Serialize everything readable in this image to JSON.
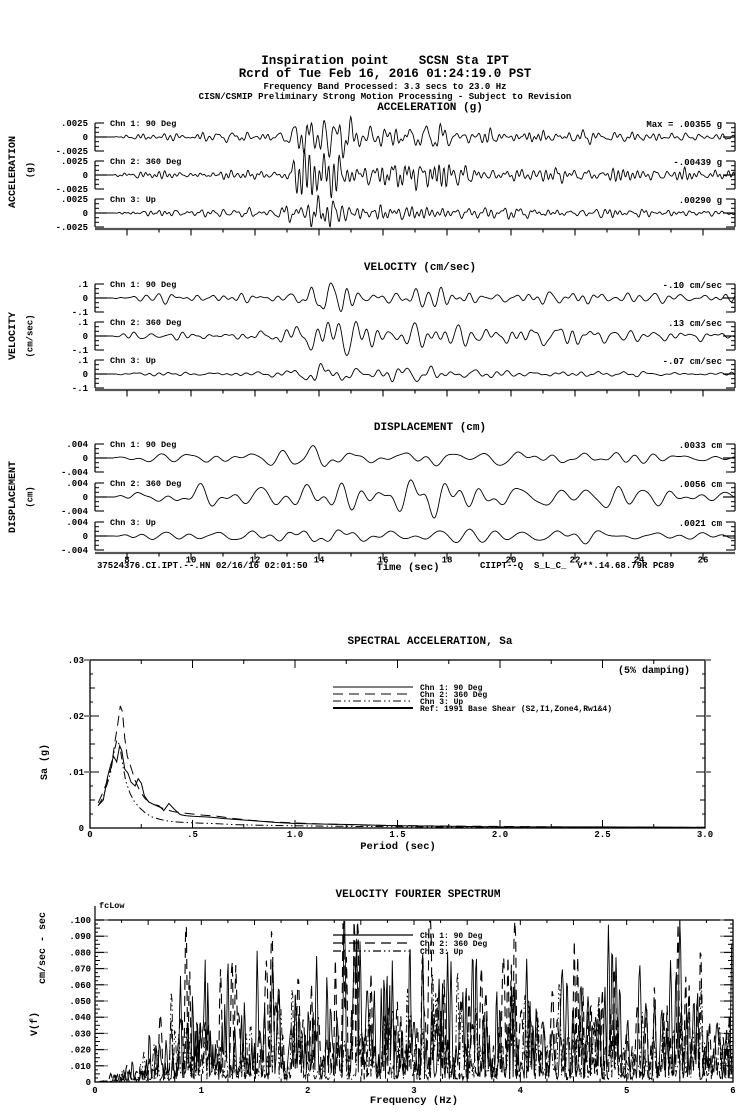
{
  "header": {
    "station_line": "Inspiration point    SCSN Sta IPT",
    "record_line": "Rcrd of Tue Feb 16, 2016 01:24:19.0 PST",
    "band_line": "Frequency Band Processed: 3.3 secs to 23.0 Hz",
    "notice_line": "CISN/CSMIP Preliminary Strong Motion Processing - Subject to Revision"
  },
  "footer": {
    "record_id": "37524376.CI.IPT.--.HN 02/16/16 02:01:50",
    "processing_id": "CIIPT--Q  S_L_C_  v**.14.68.79R PC89"
  },
  "colors": {
    "ink": "#000000",
    "axis_gray": "#555555",
    "accent_gray": "#888888"
  },
  "chart_data": [
    {
      "id": "acceleration",
      "type": "line",
      "title": "ACCELERATION (g)",
      "ylabel": "ACCELERATION",
      "ylabel_units": "(g)",
      "x_range_sec": [
        7,
        27
      ],
      "x_ticks_major": [
        8,
        10,
        12,
        14,
        16,
        18,
        20,
        22,
        24,
        26
      ],
      "y_tick_labels": [
        ".0025",
        "0",
        "-.0025"
      ],
      "y_full_scale": 0.0025,
      "channels": [
        {
          "label": "Chn 1: 90 Deg",
          "annotation": "Max =  .00355   g",
          "peak_value": 0.00355,
          "units": "g",
          "seed": 101
        },
        {
          "label": "Chn 2: 360 Deg",
          "annotation": "-.00439   g",
          "peak_value": -0.00439,
          "units": "g",
          "seed": 102
        },
        {
          "label": "Chn 3: Up",
          "annotation": ".00290   g",
          "peak_value": 0.0029,
          "units": "g",
          "seed": 103
        }
      ]
    },
    {
      "id": "velocity",
      "type": "line",
      "title": "VELOCITY (cm/sec)",
      "ylabel": "VELOCITY",
      "ylabel_units": "(cm/sec)",
      "x_range_sec": [
        7,
        27
      ],
      "x_ticks_major": [
        8,
        10,
        12,
        14,
        16,
        18,
        20,
        22,
        24,
        26
      ],
      "y_tick_labels": [
        ".1",
        "0",
        "-.1"
      ],
      "y_full_scale": 0.1,
      "channels": [
        {
          "label": "Chn 1: 90 Deg",
          "annotation": "-.10   cm/sec",
          "peak_value": -0.1,
          "units": "cm/sec",
          "seed": 201
        },
        {
          "label": "Chn 2: 360 Deg",
          "annotation": ".13   cm/sec",
          "peak_value": 0.13,
          "units": "cm/sec",
          "seed": 202
        },
        {
          "label": "Chn 3: Up",
          "annotation": "-.07   cm/sec",
          "peak_value": -0.07,
          "units": "cm/sec",
          "seed": 203
        }
      ]
    },
    {
      "id": "displacement",
      "type": "line",
      "title": "DISPLACEMENT (cm)",
      "ylabel": "DISPLACEMENT",
      "ylabel_units": "(cm)",
      "xlabel": "Time (sec)",
      "x_range_sec": [
        7,
        27
      ],
      "x_ticks_major": [
        8,
        10,
        12,
        14,
        16,
        18,
        20,
        22,
        24,
        26
      ],
      "x_tick_labels": [
        "8",
        "10",
        "12",
        "14",
        "16",
        "18",
        "20",
        "22",
        "24",
        "26"
      ],
      "y_tick_labels": [
        ".004",
        "0",
        "-.004"
      ],
      "y_full_scale": 0.004,
      "channels": [
        {
          "label": "Chn 1: 90 Deg",
          "annotation": ".0033   cm",
          "peak_value": 0.0033,
          "units": "cm",
          "seed": 301
        },
        {
          "label": "Chn 2: 360 Deg",
          "annotation": ".0056   cm",
          "peak_value": 0.0056,
          "units": "cm",
          "seed": 302
        },
        {
          "label": "Chn 3: Up",
          "annotation": ".0021   cm",
          "peak_value": 0.0021,
          "units": "cm",
          "seed": 303
        }
      ]
    },
    {
      "id": "spectral_acceleration",
      "type": "line",
      "title": "SPECTRAL ACCELERATION, Sa",
      "damping_label": "(5% damping)",
      "xlabel": "Period (sec)",
      "ylabel": "Sa (g)",
      "xlim": [
        0,
        3.0
      ],
      "ylim": [
        0,
        0.03
      ],
      "x_tick_labels": [
        "0",
        ".5",
        "1.0",
        "1.5",
        "2.0",
        "2.5",
        "3.0"
      ],
      "x_tick_values": [
        0,
        0.5,
        1.0,
        1.5,
        2.0,
        2.5,
        3.0
      ],
      "y_tick_labels": [
        "0",
        ".01",
        ".02",
        ".03"
      ],
      "y_tick_values": [
        0,
        0.01,
        0.02,
        0.03
      ],
      "series": [
        {
          "name": "Chn 1: 90 Deg",
          "style": "solid",
          "points": [
            [
              0.04,
              0.004
            ],
            [
              0.065,
              0.005
            ],
            [
              0.085,
              0.009
            ],
            [
              0.1,
              0.0112
            ],
            [
              0.115,
              0.0128
            ],
            [
              0.13,
              0.0118
            ],
            [
              0.145,
              0.0147
            ],
            [
              0.155,
              0.0138
            ],
            [
              0.17,
              0.0105
            ],
            [
              0.185,
              0.0098
            ],
            [
              0.2,
              0.0082
            ],
            [
              0.22,
              0.0075
            ],
            [
              0.235,
              0.0088
            ],
            [
              0.25,
              0.008
            ],
            [
              0.265,
              0.0058
            ],
            [
              0.285,
              0.0047
            ],
            [
              0.31,
              0.0042
            ],
            [
              0.335,
              0.004
            ],
            [
              0.36,
              0.0031
            ],
            [
              0.385,
              0.0044
            ],
            [
              0.41,
              0.0034
            ],
            [
              0.44,
              0.0024
            ],
            [
              0.47,
              0.0022
            ],
            [
              0.5,
              0.0021
            ],
            [
              0.55,
              0.002
            ],
            [
              0.6,
              0.0019
            ],
            [
              0.65,
              0.0017
            ],
            [
              0.72,
              0.0015
            ],
            [
              0.8,
              0.0013
            ],
            [
              0.9,
              0.001
            ],
            [
              1.0,
              0.0008
            ],
            [
              1.15,
              0.0007
            ],
            [
              1.3,
              0.0006
            ],
            [
              1.5,
              0.0004
            ],
            [
              1.75,
              0.0003
            ],
            [
              2.0,
              0.0002
            ],
            [
              2.5,
              0.0002
            ],
            [
              3.0,
              0.0001
            ]
          ]
        },
        {
          "name": "Chn 2: 360 Deg",
          "style": "long-dash",
          "points": [
            [
              0.04,
              0.0045
            ],
            [
              0.065,
              0.0065
            ],
            [
              0.085,
              0.0085
            ],
            [
              0.105,
              0.011
            ],
            [
              0.12,
              0.015
            ],
            [
              0.135,
              0.0185
            ],
            [
              0.148,
              0.0218
            ],
            [
              0.158,
              0.0208
            ],
            [
              0.17,
              0.016
            ],
            [
              0.182,
              0.0128
            ],
            [
              0.2,
              0.0108
            ],
            [
              0.22,
              0.0085
            ],
            [
              0.245,
              0.0065
            ],
            [
              0.27,
              0.0052
            ],
            [
              0.3,
              0.0044
            ],
            [
              0.335,
              0.0038
            ],
            [
              0.37,
              0.0033
            ],
            [
              0.41,
              0.0029
            ],
            [
              0.45,
              0.0027
            ],
            [
              0.5,
              0.0025
            ],
            [
              0.55,
              0.0023
            ],
            [
              0.62,
              0.0021
            ],
            [
              0.7,
              0.0017
            ],
            [
              0.78,
              0.0014
            ],
            [
              0.88,
              0.0011
            ],
            [
              1.0,
              0.0009
            ],
            [
              1.15,
              0.0007
            ],
            [
              1.35,
              0.0005
            ],
            [
              1.6,
              0.0004
            ],
            [
              1.9,
              0.0003
            ],
            [
              2.3,
              0.0002
            ],
            [
              2.7,
              0.0001
            ],
            [
              3.0,
              0.0001
            ]
          ]
        },
        {
          "name": "Chn 3: Up",
          "style": "dash-dot-dot",
          "points": [
            [
              0.04,
              0.004
            ],
            [
              0.065,
              0.0055
            ],
            [
              0.085,
              0.008
            ],
            [
              0.1,
              0.0098
            ],
            [
              0.115,
              0.0132
            ],
            [
              0.13,
              0.0156
            ],
            [
              0.145,
              0.0148
            ],
            [
              0.16,
              0.0112
            ],
            [
              0.175,
              0.0083
            ],
            [
              0.195,
              0.0062
            ],
            [
              0.215,
              0.0048
            ],
            [
              0.24,
              0.0037
            ],
            [
              0.27,
              0.0027
            ],
            [
              0.3,
              0.002
            ],
            [
              0.335,
              0.0016
            ],
            [
              0.37,
              0.0013
            ],
            [
              0.41,
              0.0011
            ],
            [
              0.46,
              0.001
            ],
            [
              0.52,
              0.0009
            ],
            [
              0.6,
              0.0008
            ],
            [
              0.7,
              0.0006
            ],
            [
              0.82,
              0.0005
            ],
            [
              1.0,
              0.0004
            ],
            [
              1.25,
              0.0003
            ],
            [
              1.6,
              0.0002
            ],
            [
              2.1,
              0.0001
            ],
            [
              3.0,
              0.0001
            ]
          ]
        },
        {
          "name": "Ref: 1991 Base Shear (S2,I1,Zone4,Rw1&4)",
          "style": "solid-thick",
          "points": [],
          "off_scale": true
        }
      ]
    },
    {
      "id": "velocity_fourier_spectrum",
      "type": "line",
      "title": "VELOCITY FOURIER SPECTRUM",
      "corner_label": "fcLow",
      "xlabel": "Frequency (Hz)",
      "ylabel": "V(f)",
      "ylabel_units": "cm/sec - sec",
      "xlim": [
        0,
        6
      ],
      "ylim": [
        0,
        0.1
      ],
      "x_tick_labels": [
        "0",
        "1",
        "2",
        "3",
        "4",
        "5",
        "6"
      ],
      "x_tick_values": [
        0,
        1,
        2,
        3,
        4,
        5,
        6
      ],
      "y_tick_labels": [
        "0",
        ".010",
        ".020",
        ".030",
        ".040",
        ".050",
        ".060",
        ".070",
        ".080",
        ".090",
        ".100"
      ],
      "y_tick_values": [
        0,
        0.01,
        0.02,
        0.03,
        0.04,
        0.05,
        0.06,
        0.07,
        0.08,
        0.09,
        0.1
      ],
      "series": [
        {
          "name": "Chn 1: 90 Deg",
          "style": "solid",
          "seed": 401,
          "level": 0.026,
          "peaks": [
            [
              1.02,
              0.036
            ],
            [
              1.55,
              0.032
            ],
            [
              2.44,
              0.079
            ],
            [
              2.56,
              0.058
            ],
            [
              3.0,
              0.038
            ],
            [
              3.44,
              0.051
            ],
            [
              4.3,
              0.032
            ],
            [
              5.85,
              0.037
            ]
          ]
        },
        {
          "name": "Chn 2: 360 Deg",
          "style": "long-dash",
          "seed": 402,
          "level": 0.028,
          "peaks": [
            [
              1.35,
              0.043
            ],
            [
              1.7,
              0.05
            ],
            [
              2.1,
              0.04
            ],
            [
              2.35,
              0.047
            ],
            [
              2.8,
              0.045
            ],
            [
              3.1,
              0.042
            ],
            [
              3.55,
              0.036
            ],
            [
              4.1,
              0.036
            ],
            [
              5.0,
              0.03
            ]
          ]
        },
        {
          "name": "Chn 3: Up",
          "style": "dash-dot-dot",
          "seed": 403,
          "level": 0.017,
          "peaks": [
            [
              2.5,
              0.028
            ],
            [
              3.9,
              0.037
            ],
            [
              4.45,
              0.03
            ],
            [
              5.25,
              0.029
            ]
          ]
        }
      ]
    }
  ]
}
